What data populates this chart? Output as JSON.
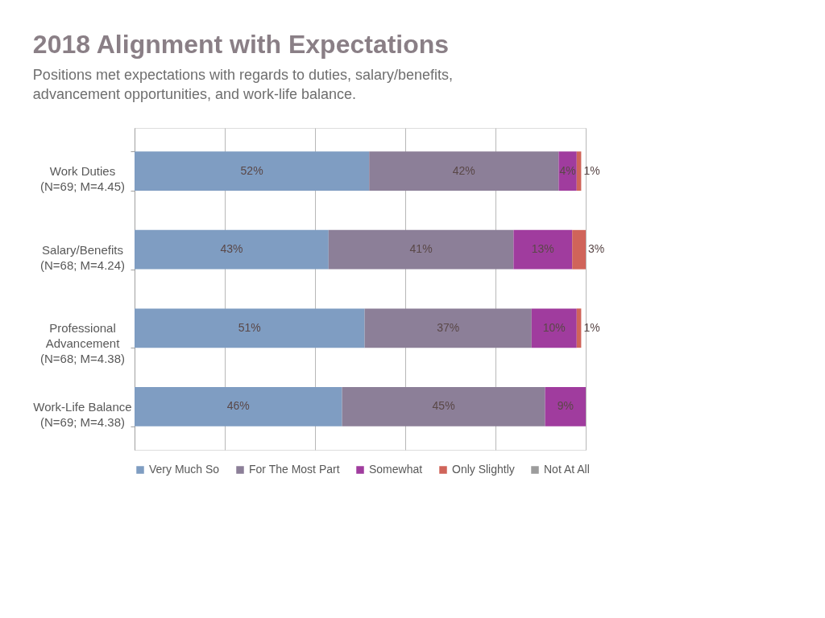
{
  "chart_data": {
    "type": "bar",
    "orientation": "horizontal",
    "stacked": true,
    "title": "2018 Alignment with Expectations",
    "subtitle": "Positions met expectations with regards to duties, salary/benefits, advancement opportunities, and work-life balance.",
    "categories": [
      "Work Duties (N=69; M=4.45)",
      "Salary/Benefits (N=68; M=4.24)",
      "Professional Advancement (N=68; M=4.38)",
      "Work-Life Balance (N=69; M=4.38)"
    ],
    "series": [
      {
        "name": "Very Much So",
        "color": "#7f9dc2",
        "values": [
          52,
          43,
          51,
          46
        ],
        "value_labels": [
          "52%",
          "43%",
          "51%",
          "46%"
        ]
      },
      {
        "name": "For The Most Part",
        "color": "#8c7f98",
        "values": [
          42,
          41,
          37,
          45
        ],
        "value_labels": [
          "42%",
          "41%",
          "37%",
          "45%"
        ]
      },
      {
        "name": "Somewhat",
        "color": "#a03c9e",
        "values": [
          4,
          13,
          10,
          9
        ],
        "value_labels": [
          "4%",
          "13%",
          "10%",
          "9%"
        ]
      },
      {
        "name": "Only Slightly",
        "color": "#d0645a",
        "values": [
          1,
          3,
          1,
          null
        ],
        "value_labels": [
          "1%",
          "3%",
          "1%",
          null
        ]
      },
      {
        "name": "Not At All",
        "color": "#9c9c9c",
        "values": [
          null,
          null,
          null,
          null
        ]
      }
    ],
    "xlim": [
      0,
      100
    ],
    "xticks": [
      {
        "value": 0,
        "label": null
      },
      {
        "value": 20,
        "label": null
      },
      {
        "value": 40,
        "label": null
      },
      {
        "value": 60,
        "label": null
      },
      {
        "value": 80,
        "label": null
      },
      {
        "value": 100,
        "label": null
      }
    ],
    "grid": "x",
    "legend": "bottom",
    "tick_labels": "y"
  }
}
